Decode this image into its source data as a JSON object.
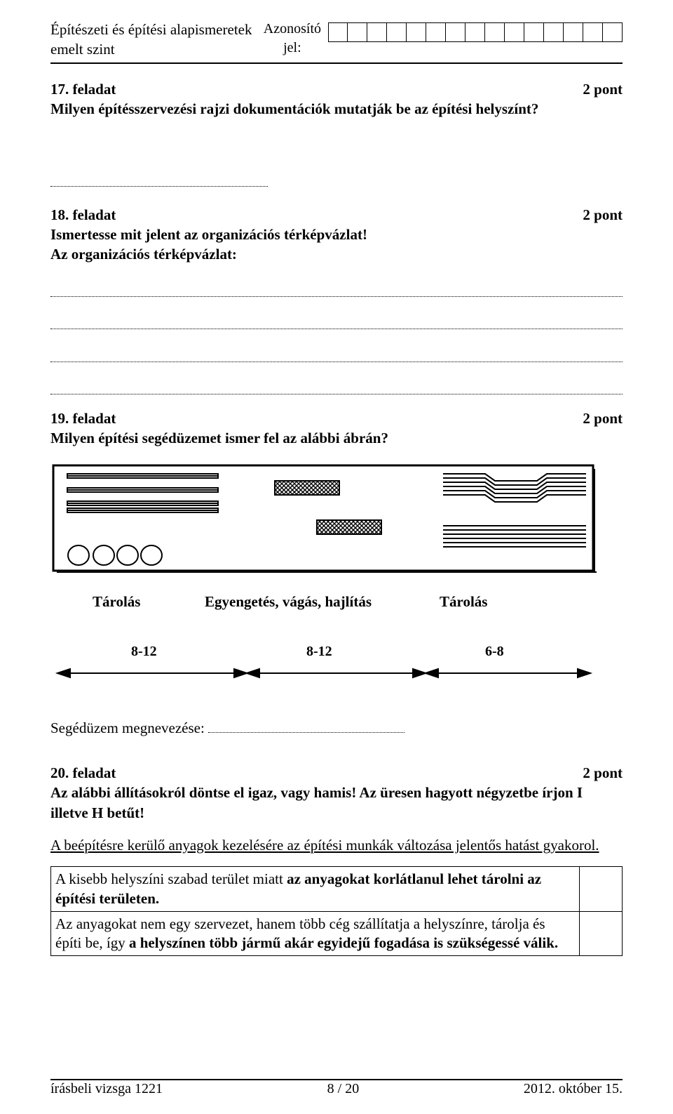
{
  "header": {
    "title_line1": "Építészeti és építési alapismeretek",
    "title_line2": "emelt szint",
    "id_label_line1": "Azonosító",
    "id_label_line2": "jel:",
    "id_cell_count": 15
  },
  "task17": {
    "title": "17. feladat",
    "points": "2 pont",
    "question": "Milyen építésszervezési rajzi dokumentációk mutatják be az építési helyszínt?"
  },
  "task18": {
    "title": "18. feladat",
    "points": "2 pont",
    "line1": "Ismertesse mit jelent az organizációs térképvázlat!",
    "line2": "Az organizációs térképvázlat:"
  },
  "task19": {
    "title": "19. feladat",
    "points": "2 pont",
    "question": "Milyen építési segédüzemet ismer fel az alábbi ábrán?",
    "figure": {
      "caption_left": "Tárolás",
      "caption_mid": "Egyengetés, vágás, hajlítás",
      "caption_right": "Tárolás",
      "dim1": "8-12",
      "dim2": "8-12",
      "dim3": "6-8"
    },
    "answer_label": "Segédüzem megnevezése:"
  },
  "task20": {
    "title": "20. feladat",
    "points": "2 pont",
    "question": "Az alábbi állításokról döntse el igaz, vagy hamis! Az üresen hagyott négyzetbe írjon I illetve H betűt!",
    "caption": "A beépítésre kerülő anyagok kezelésére az építési munkák változása jelentős hatást gyakorol.",
    "row1_plain": "A kisebb helyszíni szabad terület miatt ",
    "row1_bold": "az anyagokat korlátlanul lehet tárolni az építési területen.",
    "row2_plain1": "Az anyagokat nem egy szervezet, hanem több cég szállítatja a helyszínre, tárolja és építi be, így ",
    "row2_bold": "a helyszínen több jármű akár egyidejű fogadása is szükségessé válik."
  },
  "footer": {
    "left": "írásbeli vizsga 1221",
    "mid": "8 / 20",
    "right": "2012. október 15."
  },
  "colors": {
    "text": "#000000",
    "line": "#000000",
    "bg": "#ffffff"
  }
}
